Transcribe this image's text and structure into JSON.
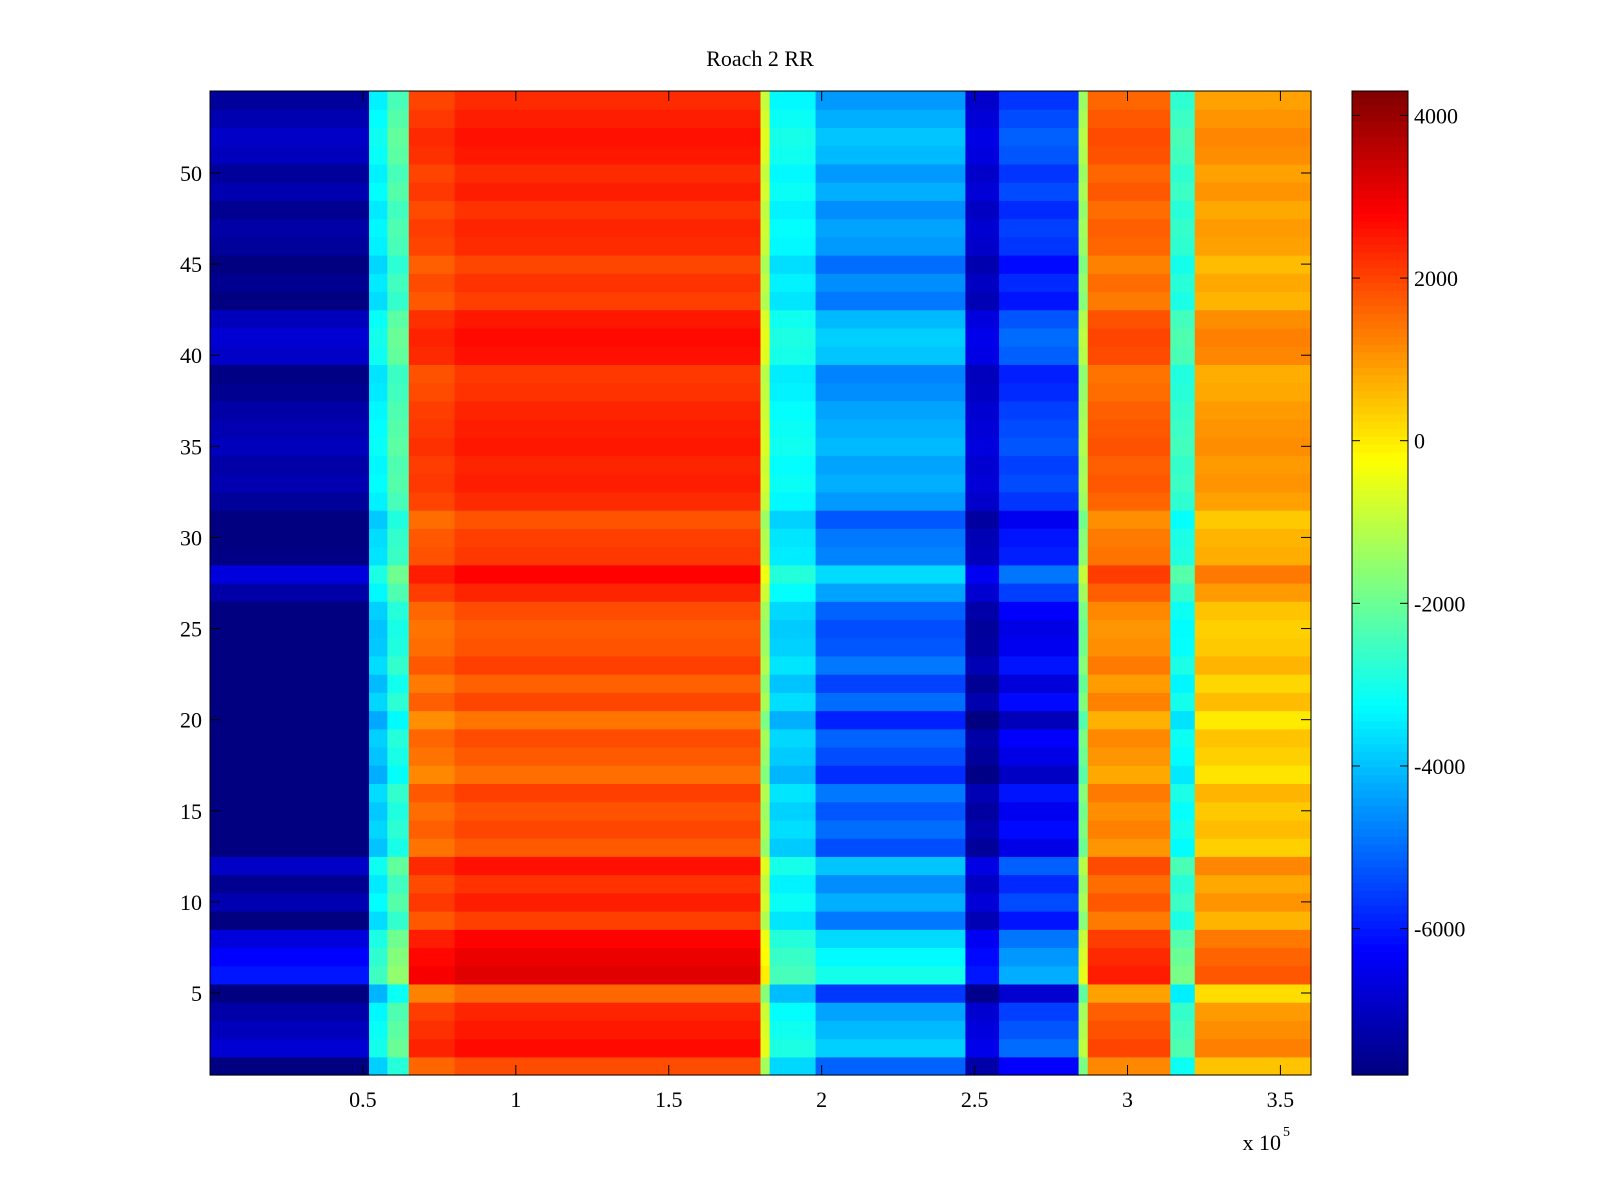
{
  "chart_data": {
    "type": "heatmap",
    "title": "Roach 2 RR",
    "colormap": "jet",
    "xlim": [
      0,
      360000
    ],
    "ylim": [
      0.5,
      54.5
    ],
    "x_ticks": [
      50000,
      100000,
      150000,
      200000,
      250000,
      300000,
      350000
    ],
    "x_tick_labels": [
      "0.5",
      "1",
      "1.5",
      "2",
      "2.5",
      "3",
      "3.5"
    ],
    "x_exponent_label": "x 10",
    "x_exponent_power": "5",
    "y_ticks": [
      5,
      10,
      15,
      20,
      25,
      30,
      35,
      40,
      45,
      50
    ],
    "y_tick_labels": [
      "5",
      "10",
      "15",
      "20",
      "25",
      "30",
      "35",
      "40",
      "45",
      "50"
    ],
    "colorbar": {
      "clim": [
        -7800,
        4300
      ],
      "ticks": [
        4000,
        2000,
        0,
        -2000,
        -4000,
        -6000
      ],
      "tick_labels": [
        "4000",
        "2000",
        "0",
        "-2000",
        "-4000",
        "-6000"
      ]
    },
    "column_bands": [
      {
        "x_start": 0,
        "x_end": 52000,
        "value": -7600
      },
      {
        "x_start": 52000,
        "x_end": 58000,
        "value": -3500
      },
      {
        "x_start": 58000,
        "x_end": 65000,
        "value": -2500
      },
      {
        "x_start": 65000,
        "x_end": 80000,
        "value": 1900
      },
      {
        "x_start": 80000,
        "x_end": 180000,
        "value": 2200
      },
      {
        "x_start": 180000,
        "x_end": 183000,
        "value": -1000
      },
      {
        "x_start": 183000,
        "x_end": 198000,
        "value": -3400
      },
      {
        "x_start": 198000,
        "x_end": 247000,
        "value": -4600
      },
      {
        "x_start": 247000,
        "x_end": 258000,
        "value": -7000
      },
      {
        "x_start": 258000,
        "x_end": 284000,
        "value": -5800
      },
      {
        "x_start": 284000,
        "x_end": 287000,
        "value": -1500
      },
      {
        "x_start": 287000,
        "x_end": 314000,
        "value": 1500
      },
      {
        "x_start": 314000,
        "x_end": 322000,
        "value": -2800
      },
      {
        "x_start": 322000,
        "x_end": 360000,
        "value": 800
      }
    ],
    "row_offsets": [
      -400,
      600,
      400,
      200,
      -800,
      1200,
      1000,
      700,
      -200,
      300,
      0,
      500,
      -600,
      -300,
      -500,
      -200,
      -900,
      -600,
      -400,
      -1000,
      -300,
      -700,
      -200,
      -500,
      -600,
      -400,
      200,
      700,
      -100,
      -200,
      -500,
      100,
      300,
      200,
      400,
      300,
      200,
      0,
      -100,
      500,
      600,
      400,
      -200,
      0,
      -300,
      100,
      200,
      0,
      300,
      100,
      400,
      500,
      300,
      100
    ]
  }
}
